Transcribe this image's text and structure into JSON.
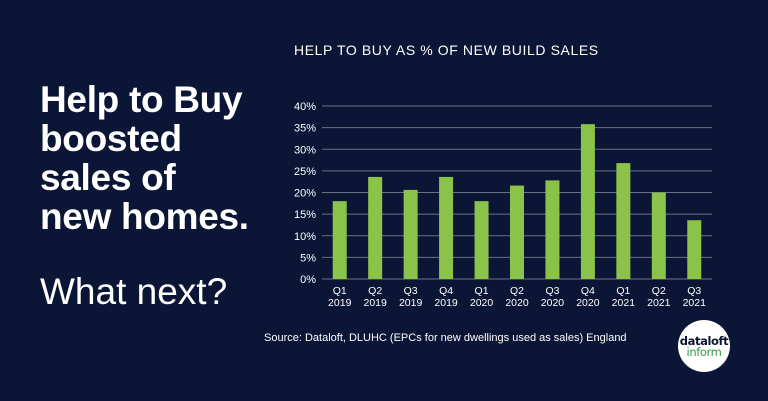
{
  "headline": {
    "lines": [
      "Help to Buy",
      "boosted",
      "sales of",
      "new homes."
    ],
    "subhead": "What next?"
  },
  "chart_title": "HELP TO BUY AS % OF NEW BUILD SALES",
  "source": "Source: Dataloft, DLUHC (EPCs for new dwellings used as sales) England",
  "logo": {
    "line1": "dataloft",
    "line2": "inform"
  },
  "colors": {
    "background": "#0b1535",
    "bar": "#8bc34a",
    "grid": "#6b7286",
    "text": "#ffffff"
  },
  "chart_data": {
    "type": "bar",
    "title": "HELP TO BUY AS % OF NEW BUILD SALES",
    "categories": [
      [
        "Q1",
        "2019"
      ],
      [
        "Q2",
        "2019"
      ],
      [
        "Q3",
        "2019"
      ],
      [
        "Q4",
        "2019"
      ],
      [
        "Q1",
        "2020"
      ],
      [
        "Q2",
        "2020"
      ],
      [
        "Q3",
        "2020"
      ],
      [
        "Q4",
        "2020"
      ],
      [
        "Q1",
        "2021"
      ],
      [
        "Q2",
        "2021"
      ],
      [
        "Q3",
        "2021"
      ]
    ],
    "values": [
      18,
      23.6,
      20.6,
      23.6,
      18,
      21.6,
      22.8,
      35.8,
      26.8,
      20,
      13.6
    ],
    "xlabel": "",
    "ylabel": "",
    "ylim": [
      0,
      40
    ],
    "yticks": [
      "0%",
      "5%",
      "10%",
      "15%",
      "20%",
      "25%",
      "30%",
      "35%",
      "40%"
    ],
    "grid": true
  }
}
